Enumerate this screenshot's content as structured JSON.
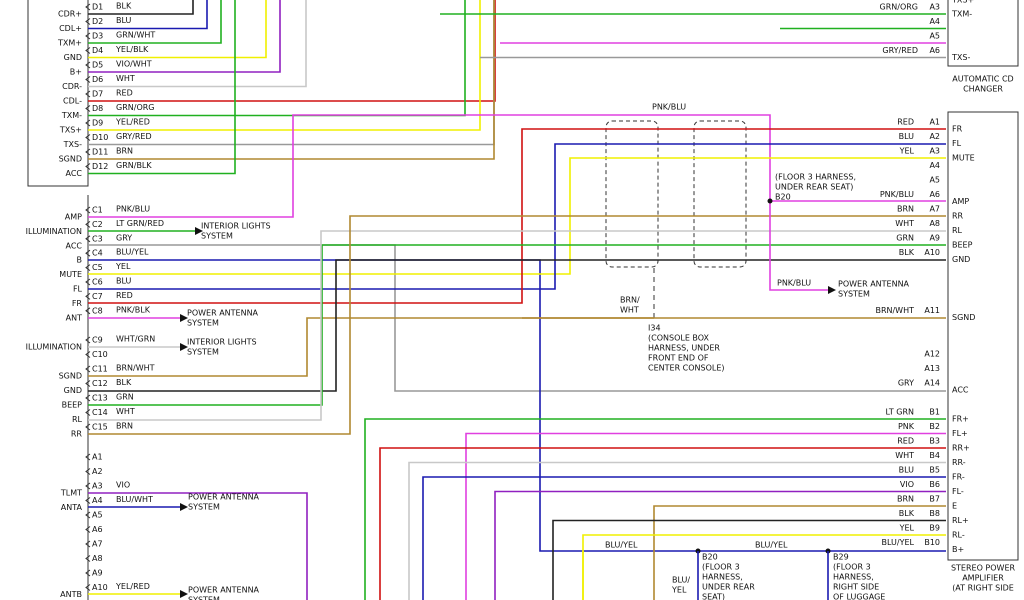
{
  "left_top": {
    "rows": [
      {
        "label": "CDR+",
        "pin": "D1",
        "wire": "BLK"
      },
      {
        "label": "CDL+",
        "pin": "D2",
        "wire": "BLU"
      },
      {
        "label": "TXM+",
        "pin": "D3",
        "wire": "GRN/WHT"
      },
      {
        "label": "GND",
        "pin": "D4",
        "wire": "YEL/BLK"
      },
      {
        "label": "B+",
        "pin": "D5",
        "wire": "VIO/WHT"
      },
      {
        "label": "CDR-",
        "pin": "D6",
        "wire": "WHT"
      },
      {
        "label": "CDL-",
        "pin": "D7",
        "wire": "RED"
      },
      {
        "label": "TXM-",
        "pin": "D8",
        "wire": "GRN/ORG"
      },
      {
        "label": "TXS+",
        "pin": "D9",
        "wire": "YEL/RED"
      },
      {
        "label": "TXS-",
        "pin": "D10",
        "wire": "GRY/RED"
      },
      {
        "label": "SGND",
        "pin": "D11",
        "wire": "BRN"
      },
      {
        "label": "ACC",
        "pin": "D12",
        "wire": "GRN/BLK"
      }
    ]
  },
  "left_mid": {
    "rows": [
      {
        "label": "AMP",
        "pin": "C1",
        "wire": "PNK/BLU"
      },
      {
        "label": "ILLUMINATION",
        "pin": "C2",
        "wire": "LT GRN/RED"
      },
      {
        "label": "ACC",
        "pin": "C3",
        "wire": "GRY"
      },
      {
        "label": "B",
        "pin": "C4",
        "wire": "BLU/YEL"
      },
      {
        "label": "MUTE",
        "pin": "C5",
        "wire": "YEL"
      },
      {
        "label": "FL",
        "pin": "C6",
        "wire": "BLU"
      },
      {
        "label": "FR",
        "pin": "C7",
        "wire": "RED"
      },
      {
        "label": "ANT",
        "pin": "C8",
        "wire": "PNK/BLK"
      },
      {
        "label": "ILLUMINATION",
        "pin": "C9",
        "wire": "WHT/GRN"
      },
      {
        "pin": "C10"
      },
      {
        "label": "SGND",
        "pin": "C11",
        "wire": "BRN/WHT"
      },
      {
        "label": "GND",
        "pin": "C12",
        "wire": "BLK"
      },
      {
        "label": "BEEP",
        "pin": "C13",
        "wire": "GRN"
      },
      {
        "label": "RL",
        "pin": "C14",
        "wire": "WHT"
      },
      {
        "label": "RR",
        "pin": "C15",
        "wire": "BRN"
      }
    ]
  },
  "left_bottom": {
    "rows": [
      {
        "pin": "A1"
      },
      {
        "pin": "A2"
      },
      {
        "label": "TLMT",
        "pin": "A3",
        "wire": "VIO"
      },
      {
        "label": "ANTA",
        "pin": "A4",
        "wire": "BLU/WHT"
      },
      {
        "pin": "A5"
      },
      {
        "pin": "A6"
      },
      {
        "pin": "A7"
      },
      {
        "pin": "A8"
      },
      {
        "pin": "A9"
      },
      {
        "label": "ANTB",
        "pin": "A10",
        "wire": "YEL/RED"
      }
    ]
  },
  "changer": {
    "cut_label": "TXS+",
    "rows": [
      {
        "wire": "GRN/ORG",
        "pin": "A3",
        "label": "TXM-"
      },
      {
        "pin": "A4"
      },
      {
        "pin": "A5"
      },
      {
        "wire": "GRY/RED",
        "pin": "A6",
        "label": "TXS-"
      }
    ],
    "title": [
      "AUTOMATIC CD",
      "CHANGER"
    ]
  },
  "amplifier": {
    "rows": [
      {
        "wire": "RED",
        "pin": "A1",
        "label": "FR"
      },
      {
        "wire": "BLU",
        "pin": "A2",
        "label": "FL"
      },
      {
        "wire": "YEL",
        "pin": "A3",
        "label": "MUTE"
      },
      {
        "pin": "A4"
      },
      {
        "pin": "A5"
      },
      {
        "wire": "PNK/BLU",
        "pin": "A6",
        "label": "AMP"
      },
      {
        "wire": "BRN",
        "pin": "A7",
        "label": "RR"
      },
      {
        "wire": "WHT",
        "pin": "A8",
        "label": "RL"
      },
      {
        "wire": "GRN",
        "pin": "A9",
        "label": "BEEP"
      },
      {
        "wire": "BLK",
        "pin": "A10",
        "label": "GND"
      },
      {
        "wire": "BRN/WHT",
        "pin": "A11",
        "label": "SGND"
      },
      {
        "pin": "A12"
      },
      {
        "pin": "A13"
      },
      {
        "wire": "GRY",
        "pin": "A14",
        "label": "ACC"
      },
      {
        "wire": "LT GRN",
        "pin": "B1",
        "label": "FR+"
      },
      {
        "wire": "PNK",
        "pin": "B2",
        "label": "FL+"
      },
      {
        "wire": "RED",
        "pin": "B3",
        "label": "RR+"
      },
      {
        "wire": "WHT",
        "pin": "B4",
        "label": "RR-"
      },
      {
        "wire": "BLU",
        "pin": "B5",
        "label": "FR-"
      },
      {
        "wire": "VIO",
        "pin": "B6",
        "label": "FL-"
      },
      {
        "wire": "BRN",
        "pin": "B7",
        "label": "E"
      },
      {
        "wire": "BLK",
        "pin": "B8",
        "label": "RL+"
      },
      {
        "wire": "YEL",
        "pin": "B9",
        "label": "RL-"
      },
      {
        "wire": "BLU/YEL",
        "pin": "B10",
        "label": "B+"
      }
    ],
    "title": [
      "STEREO POWER",
      "AMPLIFIER",
      "(AT RIGHT SIDE"
    ]
  },
  "annotations": [
    {
      "lines": [
        "PNK/BLU"
      ]
    },
    {
      "lines": [
        "(FLOOR 3 HARNESS,",
        "UNDER REAR SEAT)",
        "B20"
      ]
    },
    {
      "lines": [
        "PNK/BLU"
      ]
    },
    {
      "lines": [
        "POWER ANTENNA",
        "SYSTEM"
      ]
    },
    {
      "lines": [
        "BRN/",
        "WHT"
      ]
    },
    {
      "lines": [
        "I34",
        "(CONSOLE BOX",
        "HARNESS, UNDER",
        "FRONT END OF",
        "CENTER CONSOLE)"
      ]
    },
    {
      "lines": [
        "INTERIOR LIGHTS",
        "SYSTEM"
      ]
    },
    {
      "lines": [
        "POWER ANTENNA",
        "SYSTEM"
      ]
    },
    {
      "lines": [
        "INTERIOR LIGHTS",
        "SYSTEM"
      ]
    },
    {
      "lines": [
        "POWER ANTENNA",
        "SYSTEM"
      ]
    },
    {
      "lines": [
        "POWER ANTENNA",
        "SYSTEM"
      ]
    },
    {
      "lines": [
        "BLU/YEL"
      ]
    },
    {
      "lines": [
        "BLU/YEL"
      ]
    },
    {
      "lines": [
        "B20",
        "(FLOOR 3",
        "HARNESS,",
        "UNDER REAR",
        "SEAT)"
      ]
    },
    {
      "lines": [
        "B29",
        "(FLOOR 3",
        "HARNESS,",
        "RIGHT SIDE",
        "OF LUGGAGE"
      ]
    },
    {
      "lines": [
        "BLU/",
        "YEL"
      ]
    }
  ]
}
